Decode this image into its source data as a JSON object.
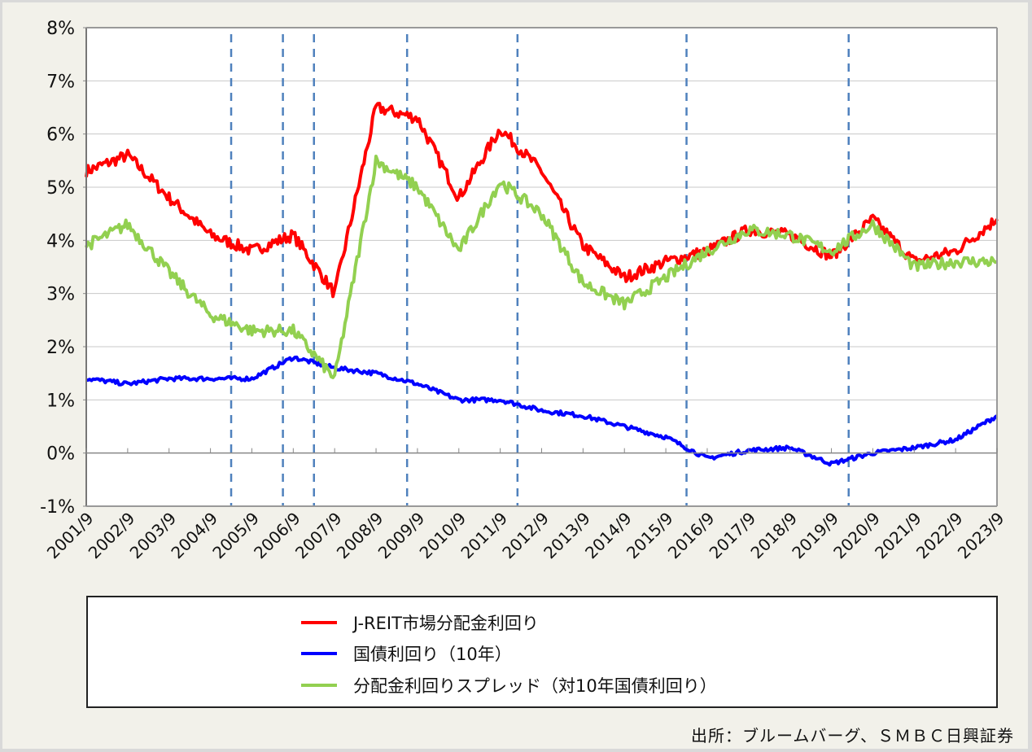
{
  "chart_data": {
    "type": "line",
    "title": "",
    "xlabel": "",
    "ylabel": "",
    "ylim": [
      -1,
      8
    ],
    "yticks": [
      "8%",
      "7%",
      "6%",
      "5%",
      "4%",
      "3%",
      "2%",
      "1%",
      "0%",
      "-1%"
    ],
    "categories": [
      "2001/9",
      "2002/9",
      "2003/9",
      "2004/9",
      "2005/9",
      "2006/9",
      "2007/9",
      "2008/9",
      "2009/9",
      "2010/9",
      "2011/9",
      "2012/9",
      "2013/9",
      "2014/9",
      "2015/9",
      "2016/9",
      "2017/9",
      "2018/9",
      "2019/9",
      "2020/9",
      "2021/9",
      "2022/9",
      "2023/9"
    ],
    "grid": true,
    "legend_position": "bottom",
    "vertical_dashed_markers": [
      "2005/3",
      "2006/6",
      "2007/3",
      "2009/6",
      "2012/2",
      "2016/3",
      "2020/2"
    ],
    "series": [
      {
        "name": "J-REIT市場分配金利回り",
        "color": "#ff0000",
        "values": [
          5.3,
          5.6,
          4.8,
          4.1,
          3.8,
          4.1,
          3.0,
          6.5,
          6.3,
          4.8,
          6.1,
          5.3,
          3.9,
          3.3,
          3.6,
          3.8,
          4.2,
          4.1,
          3.7,
          4.4,
          3.6,
          3.8,
          4.4
        ]
      },
      {
        "name": "国債利回り（10年）",
        "color": "#0000ff",
        "values": [
          1.4,
          1.3,
          1.4,
          1.4,
          1.4,
          1.8,
          1.6,
          1.5,
          1.3,
          1.0,
          1.0,
          0.8,
          0.7,
          0.5,
          0.3,
          -0.1,
          0.05,
          0.1,
          -0.2,
          0.0,
          0.1,
          0.25,
          0.7
        ]
      },
      {
        "name": "分配金利回りスプレッド（対10年国債利回り）",
        "color": "#92d050",
        "values": [
          3.9,
          4.3,
          3.4,
          2.6,
          2.3,
          2.3,
          1.4,
          5.5,
          5.0,
          3.8,
          5.1,
          4.5,
          3.2,
          2.8,
          3.3,
          3.8,
          4.2,
          4.1,
          3.8,
          4.3,
          3.5,
          3.6,
          3.6
        ]
      }
    ]
  },
  "legend": {
    "items": [
      {
        "label": "J-REIT市場分配金利回り",
        "color": "#ff0000"
      },
      {
        "label": "国債利回り（10年）",
        "color": "#0000ff"
      },
      {
        "label": "分配金利回りスプレッド（対10年国債利回り）",
        "color": "#92d050"
      }
    ]
  },
  "source": "出所：ブルームバーグ、ＳＭＢＣ日興証券",
  "colors": {
    "background": "#f2f1ea",
    "plot": "#ffffff",
    "grid": "#c8c8c8",
    "dashed_marker": "#4f81bd"
  }
}
